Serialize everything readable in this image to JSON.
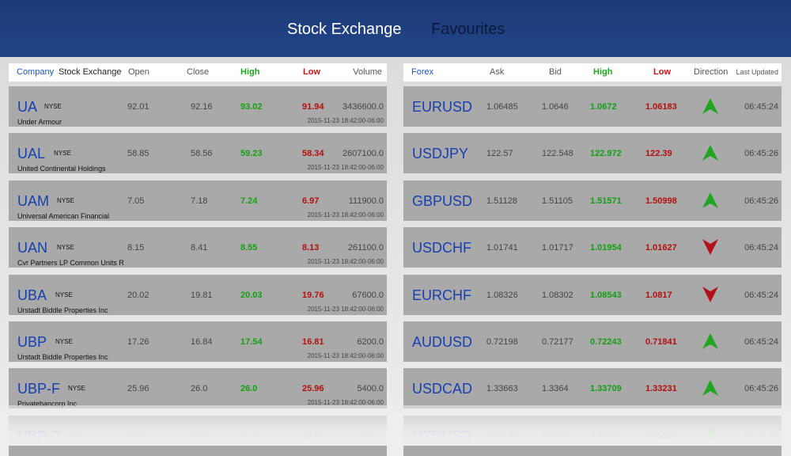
{
  "topbar": {
    "tab_exchange": "Stock Exchange",
    "tab_favourites": "Favourites"
  },
  "stocks": {
    "headers": {
      "company": "Company",
      "exchange": "Stock Exchange",
      "open": "Open",
      "close": "Close",
      "high": "High",
      "low": "Low",
      "volume": "Volume"
    },
    "rows": [
      {
        "symbol": "UA",
        "exchange": "NYSE",
        "name": "Under Armour",
        "open": "92.01",
        "close": "92.16",
        "high": "93.02",
        "low": "91.94",
        "volume": "3436600.0",
        "timestamp": "2015-11-23 18:42:00-06:00"
      },
      {
        "symbol": "UAL",
        "exchange": "NYSE",
        "name": "United Continental Holdings",
        "open": "58.85",
        "close": "58.56",
        "high": "59.23",
        "low": "58.34",
        "volume": "2607100.0",
        "timestamp": "2015-11-23 18:42:00-06:00"
      },
      {
        "symbol": "UAM",
        "exchange": "NYSE",
        "name": "Universal American Financial",
        "open": "7.05",
        "close": "7.18",
        "high": "7.24",
        "low": "6.97",
        "volume": "111900.0",
        "timestamp": "2015-11-23 18:42:00-06:00"
      },
      {
        "symbol": "UAN",
        "exchange": "NYSE",
        "name": "Cvr Partners LP Common Units R",
        "open": "8.15",
        "close": "8.41",
        "high": "8.55",
        "low": "8.13",
        "volume": "261100.0",
        "timestamp": "2015-11-23 18:42:00-06:00"
      },
      {
        "symbol": "UBA",
        "exchange": "NYSE",
        "name": "Urstadt Biddle Properties Inc",
        "open": "20.02",
        "close": "19.81",
        "high": "20.03",
        "low": "19.76",
        "volume": "67600.0",
        "timestamp": "2015-11-23 18:42:00-06:00"
      },
      {
        "symbol": "UBP",
        "exchange": "NYSE",
        "name": "Urstadt Biddle Properties Inc",
        "open": "17.26",
        "close": "16.84",
        "high": "17.54",
        "low": "16.81",
        "volume": "6200.0",
        "timestamp": "2015-11-23 18:42:00-06:00"
      },
      {
        "symbol": "UBP-F",
        "exchange": "NYSE",
        "name": "Privatebancorp Inc",
        "open": "25.96",
        "close": "26.0",
        "high": "26.0",
        "low": "25.96",
        "volume": "5400.0",
        "timestamp": "2015-11-23 18:42:00-06:00"
      },
      {
        "symbol": "UBP-G",
        "exchange": "NYSE",
        "name": "",
        "open": "25.8",
        "close": "25.8",
        "high": "25.8",
        "low": "25.8",
        "volume": "600.0",
        "timestamp": ""
      }
    ]
  },
  "forex": {
    "headers": {
      "forex": "Forex",
      "ask": "Ask",
      "bid": "Bid",
      "high": "High",
      "low": "Low",
      "direction": "Direction",
      "last_updated": "Last Updated"
    },
    "rows": [
      {
        "symbol": "EURUSD",
        "ask": "1.06485",
        "bid": "1.0646",
        "high": "1.0672",
        "low": "1.06183",
        "direction": "up",
        "time": "06:45:24"
      },
      {
        "symbol": "USDJPY",
        "ask": "122.57",
        "bid": "122.548",
        "high": "122.972",
        "low": "122.39",
        "direction": "up",
        "time": "06:45:26"
      },
      {
        "symbol": "GBPUSD",
        "ask": "1.51128",
        "bid": "1.51105",
        "high": "1.51571",
        "low": "1.50998",
        "direction": "up",
        "time": "06:45:26"
      },
      {
        "symbol": "USDCHF",
        "ask": "1.01741",
        "bid": "1.01717",
        "high": "1.01954",
        "low": "1.01627",
        "direction": "down",
        "time": "06:45:24"
      },
      {
        "symbol": "EURCHF",
        "ask": "1.08326",
        "bid": "1.08302",
        "high": "1.08543",
        "low": "1.0817",
        "direction": "down",
        "time": "06:45:24"
      },
      {
        "symbol": "AUDUSD",
        "ask": "0.72198",
        "bid": "0.72177",
        "high": "0.72243",
        "low": "0.71841",
        "direction": "up",
        "time": "06:45:24"
      },
      {
        "symbol": "USDCAD",
        "ask": "1.33663",
        "bid": "1.3364",
        "high": "1.33709",
        "low": "1.33231",
        "direction": "up",
        "time": "06:45:26"
      },
      {
        "symbol": "NZDUSD",
        "ask": "0.65148",
        "bid": "0.65119",
        "high": "0.65385",
        "low": "0.65037",
        "direction": "up",
        "time": "06:45:26"
      }
    ]
  },
  "colors": {
    "header_blue": "#1b3a78",
    "up_arrow": "#1fa51f",
    "down_arrow": "#b3101a",
    "high_text": "#13a013",
    "low_text": "#b40f0f"
  }
}
